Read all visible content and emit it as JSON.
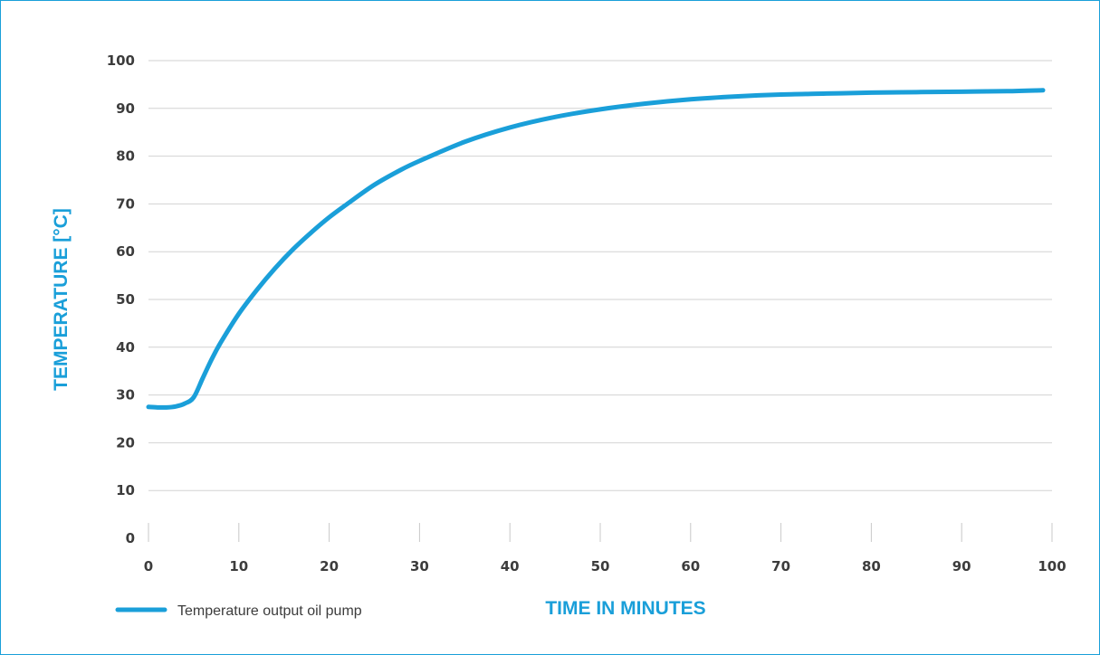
{
  "chart_data": {
    "type": "line",
    "xlabel": "TIME IN MINUTES",
    "ylabel": "TEMPERATURE [°C]",
    "xlim": [
      0,
      100
    ],
    "ylim": [
      0,
      100
    ],
    "x_ticks": [
      0,
      10,
      20,
      30,
      40,
      50,
      60,
      70,
      80,
      90,
      100
    ],
    "y_ticks": [
      0,
      10,
      20,
      30,
      40,
      50,
      60,
      70,
      80,
      90,
      100
    ],
    "grid": true,
    "legend": "bottom-left",
    "series": [
      {
        "name": "Temperature output oil pump",
        "color": "#1a9fd9",
        "x": [
          0,
          1,
          2,
          3,
          4,
          5,
          6,
          7,
          8,
          10,
          12,
          14,
          16,
          18,
          20,
          22,
          25,
          28,
          30,
          35,
          40,
          45,
          50,
          55,
          60,
          65,
          70,
          75,
          80,
          85,
          90,
          95,
          99
        ],
        "y": [
          27.5,
          27.4,
          27.4,
          27.6,
          28.2,
          29.5,
          33.5,
          37.5,
          41,
          47,
          52,
          56.5,
          60.5,
          64,
          67.2,
          70,
          74,
          77.2,
          79,
          83,
          86,
          88.2,
          89.8,
          91,
          91.9,
          92.5,
          92.9,
          93.1,
          93.3,
          93.4,
          93.5,
          93.6,
          93.8
        ]
      }
    ]
  }
}
